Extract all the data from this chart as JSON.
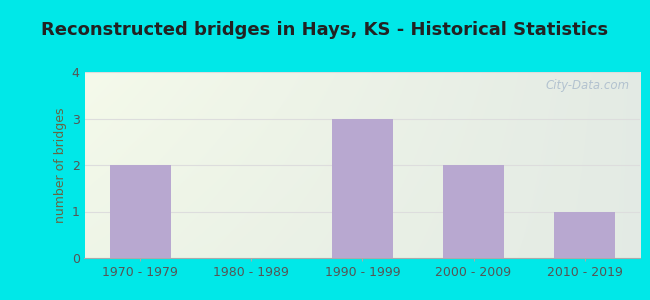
{
  "title": "Reconstructed bridges in Hays, KS - Historical Statistics",
  "categories": [
    "1970 - 1979",
    "1980 - 1989",
    "1990 - 1999",
    "2000 - 2009",
    "2010 - 2019"
  ],
  "values": [
    2,
    0,
    3,
    2,
    1
  ],
  "bar_color": "#b8a8d0",
  "ylabel": "number of bridges",
  "ylim": [
    0,
    4
  ],
  "yticks": [
    0,
    1,
    2,
    3,
    4
  ],
  "background_outer": "#00e8e8",
  "title_color": "#222222",
  "title_fontsize": 13,
  "axis_label_fontsize": 9,
  "tick_fontsize": 9,
  "tick_color": "#555555",
  "ylabel_color": "#666644",
  "watermark": "City-Data.com",
  "grid_color": "#dddddd",
  "bar_width": 0.55
}
